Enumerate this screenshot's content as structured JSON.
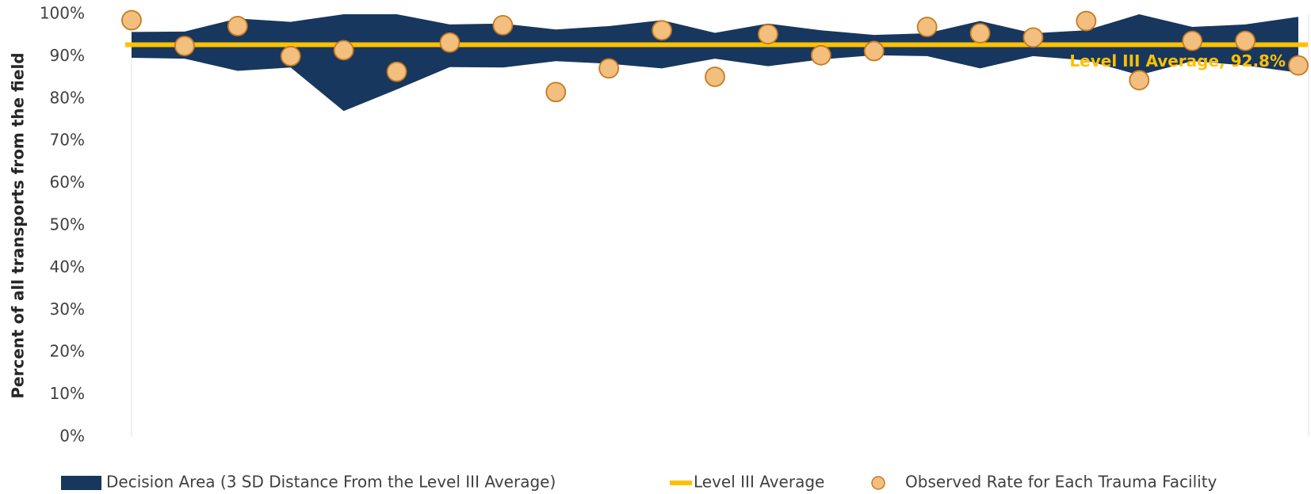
{
  "chart_data": {
    "type": "band",
    "y_label": "Percent of all transports from the field",
    "categories": [
      null,
      null,
      null,
      null,
      null,
      null,
      null,
      null,
      null,
      null,
      null,
      null,
      null,
      null,
      null,
      null,
      null,
      null,
      null,
      null,
      null,
      null,
      null
    ],
    "ylim": [
      0,
      1
    ],
    "yticks": [
      {
        "value": 0,
        "label": "0%"
      },
      {
        "value": 0.1,
        "label": "10%"
      },
      {
        "value": 0.2,
        "label": "20%"
      },
      {
        "value": 0.3,
        "label": "30%"
      },
      {
        "value": 0.4,
        "label": "40%"
      },
      {
        "value": 0.5,
        "label": "50%"
      },
      {
        "value": 0.6,
        "label": "60%"
      },
      {
        "value": 0.7,
        "label": "70%"
      },
      {
        "value": 0.8,
        "label": "80%"
      },
      {
        "value": 0.9,
        "label": "90%"
      },
      {
        "value": 1,
        "label": "100%"
      }
    ],
    "grid": false,
    "series": [
      {
        "name": "Decision Area (3 SD Distance From the Level III Average)",
        "color": "#17375e",
        "upper": [
          0.958,
          0.959,
          0.99,
          0.982,
          1.0,
          1.0,
          0.976,
          0.978,
          0.964,
          0.972,
          0.986,
          0.956,
          0.978,
          0.962,
          0.951,
          0.955,
          0.984,
          0.955,
          0.962,
          1.0,
          0.97,
          0.976,
          0.994
        ],
        "lower": [
          0.897,
          0.895,
          0.866,
          0.874,
          0.771,
          0.822,
          0.875,
          0.874,
          0.889,
          0.883,
          0.872,
          0.895,
          0.877,
          0.893,
          0.903,
          0.901,
          0.872,
          0.901,
          0.891,
          0.856,
          0.889,
          0.879,
          0.862
        ]
      },
      {
        "name": "Level III Average",
        "color": "#ffc000",
        "value": 0.928,
        "label": "Level III Average, 92.8%"
      },
      {
        "name": "Observed Rate for Each Trauma Facility",
        "color": "#f2bf7e",
        "edge_color": "#c47a22",
        "values": [
          0.986,
          0.925,
          0.972,
          0.901,
          0.915,
          0.864,
          0.933,
          0.974,
          0.816,
          0.872,
          0.962,
          0.852,
          0.953,
          0.903,
          0.913,
          0.97,
          0.955,
          0.945,
          0.984,
          0.844,
          0.937,
          0.937,
          0.879
        ]
      }
    ]
  }
}
